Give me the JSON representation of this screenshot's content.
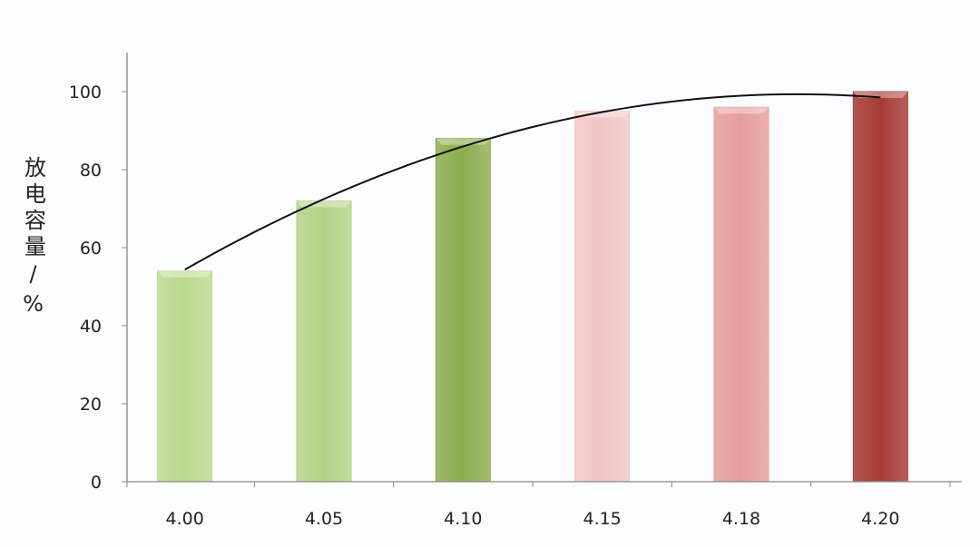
{
  "chart_data": {
    "type": "bar",
    "title": "",
    "xlabel": "",
    "ylabel": "放电容量/%",
    "categories": [
      "4.00",
      "4.05",
      "4.10",
      "4.15",
      "4.18",
      "4.20"
    ],
    "values": [
      54,
      72,
      88,
      95,
      96,
      100
    ],
    "trend_line": true,
    "ylim": [
      0,
      110
    ],
    "yticks": [
      0,
      20,
      40,
      60,
      80,
      100
    ],
    "grid": false,
    "legend": "none",
    "bar_colors": [
      "#bcd98f",
      "#b2d385",
      "#8cad4e",
      "#f2c6c6",
      "#e59e9b",
      "#a43a33"
    ],
    "line_color": "#111111"
  }
}
